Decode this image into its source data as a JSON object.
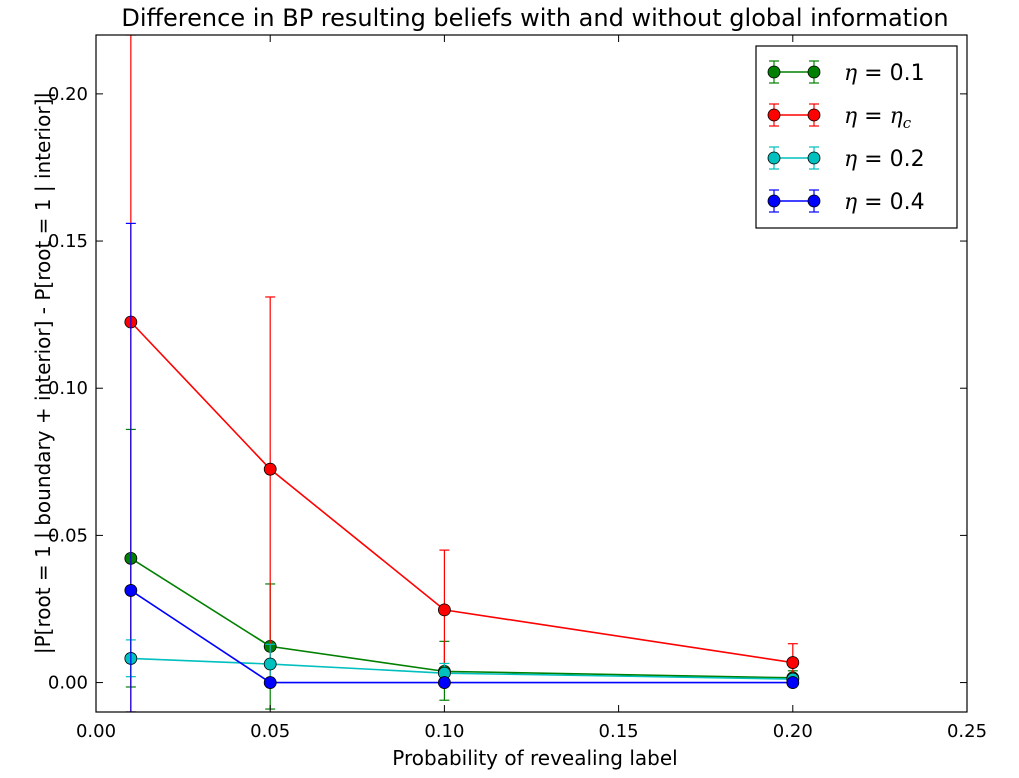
{
  "chart_data": {
    "type": "line",
    "title": "Difference in BP resulting beliefs with and without global information",
    "xlabel": "Probability of revealing label",
    "ylabel": "|P[root = 1 | boundary + interior] - P[root = 1 | interior]|",
    "xlim": [
      0.0,
      0.25
    ],
    "ylim": [
      -0.01,
      0.22
    ],
    "xticks": [
      "0.00",
      "0.05",
      "0.10",
      "0.15",
      "0.20",
      "0.25"
    ],
    "yticks": [
      "0.00",
      "0.05",
      "0.10",
      "0.15",
      "0.20"
    ],
    "grid": false,
    "legend_position": "top-right",
    "x": [
      0.01,
      0.05,
      0.1,
      0.2
    ],
    "series": [
      {
        "name": "η = 0.1",
        "legend_symbol": "η",
        "legend_rhs": "= 0.1",
        "color": "#008000",
        "values": [
          0.0422,
          0.0123,
          0.0038,
          0.0016
        ],
        "error_low": [
          -0.0015,
          -0.009,
          -0.006,
          -0.0005
        ],
        "error_high": [
          0.086,
          0.0335,
          0.014,
          0.004
        ]
      },
      {
        "name": "η = η_c",
        "legend_symbol": "η",
        "legend_rhs": "= η",
        "legend_sub": "c",
        "color": "#ff0000",
        "values": [
          0.1225,
          0.0725,
          0.0247,
          0.0068
        ],
        "error_low": [
          -0.01,
          0.0,
          0.0,
          0.0
        ],
        "error_high": [
          0.22,
          0.131,
          0.045,
          0.0132
        ]
      },
      {
        "name": "η = 0.2",
        "legend_symbol": "η",
        "legend_rhs": "= 0.2",
        "color": "#00bfbf",
        "values": [
          0.0082,
          0.0063,
          0.0032,
          0.0012
        ],
        "error_low": [
          0.002,
          0.0,
          0.0,
          0.0
        ],
        "error_high": [
          0.0145,
          0.013,
          0.0065,
          0.0025
        ]
      },
      {
        "name": "η = 0.4",
        "legend_symbol": "η",
        "legend_rhs": "= 0.4",
        "color": "#0000ff",
        "values": [
          0.0313,
          0.0,
          0.0,
          0.0
        ],
        "error_low": [
          -0.01,
          0.0,
          0.0,
          0.0
        ],
        "error_high": [
          0.156,
          0.0,
          0.0,
          0.0
        ]
      }
    ]
  }
}
